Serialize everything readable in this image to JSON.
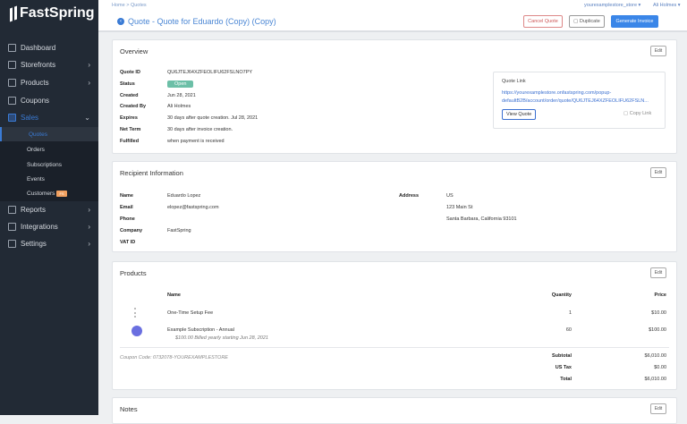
{
  "brand": "FastSpring",
  "sidebar": {
    "items": [
      {
        "label": "Dashboard",
        "icon": "dashboard-icon",
        "chev": false
      },
      {
        "label": "Storefronts",
        "icon": "storefront-icon",
        "chev": true
      },
      {
        "label": "Products",
        "icon": "products-icon",
        "chev": true
      },
      {
        "label": "Coupons",
        "icon": "coupon-icon",
        "chev": false
      },
      {
        "label": "Sales",
        "icon": "sales-icon",
        "chev": true,
        "active": true
      }
    ],
    "sub": [
      "Quotes",
      "Orders",
      "Subscriptions",
      "Events",
      "Customers"
    ],
    "customers_badge": "FS",
    "bottom": [
      {
        "label": "Reports",
        "icon": "reports-icon"
      },
      {
        "label": "Integrations",
        "icon": "integrations-icon"
      },
      {
        "label": "Settings",
        "icon": "gear-icon"
      }
    ]
  },
  "header": {
    "breadcrumb": "Home  >  Quotes",
    "store": "yourexamplestore_store ▾",
    "user": "Ali Holmes ▾",
    "title": "Quote - Quote for Eduardo (Copy) (Copy)",
    "cancel": "Cancel Quote",
    "duplicate": "Duplicate",
    "generate": "Generate Invoice"
  },
  "edit": "Edit",
  "overview": {
    "title": "Overview",
    "rows": [
      {
        "label": "Quote ID",
        "value": "QU6JTEJ64XZFEOLIFU62FSLNO7PY"
      },
      {
        "label": "Status",
        "value": "Open"
      },
      {
        "label": "Created",
        "value": "Jun 28, 2021"
      },
      {
        "label": "Created By",
        "value": "Ali Holmes"
      },
      {
        "label": "Expires",
        "value": "30 days after quote creation. Jul 28, 2021"
      },
      {
        "label": "Net Term",
        "value": "30 days after invoice creation."
      },
      {
        "label": "Fulfilled",
        "value": "when payment is received"
      }
    ],
    "link_title": "Quote Link",
    "link1": "https://yourexamplestore.onfastspring.com/popup-",
    "link2": "defaultB2B/account/order/quote/QU6JTEJ64XZFEOLIFU62FSLN...",
    "view": "View Quote",
    "copy": "Copy Link"
  },
  "recipient": {
    "title": "Recipient Information",
    "rows": [
      {
        "label": "Name",
        "value": "Eduardo Lopez"
      },
      {
        "label": "Email",
        "value": "elopez@fastspring.com"
      },
      {
        "label": "Phone",
        "value": ""
      },
      {
        "label": "Company",
        "value": "FastSpring"
      },
      {
        "label": "VAT ID",
        "value": ""
      }
    ],
    "address_label": "Address",
    "address": [
      "US",
      "123 Main St",
      "Santa Barbara, California 93101"
    ]
  },
  "products": {
    "title": "Products",
    "col_name": "Name",
    "col_qty": "Quantity",
    "col_price": "Price",
    "items": [
      {
        "name": "One-Time Setup Fee",
        "qty": "1",
        "price": "$10.00"
      },
      {
        "name": "Example Subscription - Annual",
        "sub": "$100.00 Billed yearly starting Jun 28, 2021",
        "qty": "60",
        "price": "$100.00"
      }
    ],
    "coupon": "Coupon Code: 0732078-YOUREXAMPLESTORE",
    "totals": [
      {
        "label": "Subtotal",
        "value": "$6,010.00"
      },
      {
        "label": "US Tax",
        "value": "$0.00"
      },
      {
        "label": "Total",
        "value": "$6,010.00"
      }
    ]
  },
  "notes": {
    "title": "Notes"
  }
}
